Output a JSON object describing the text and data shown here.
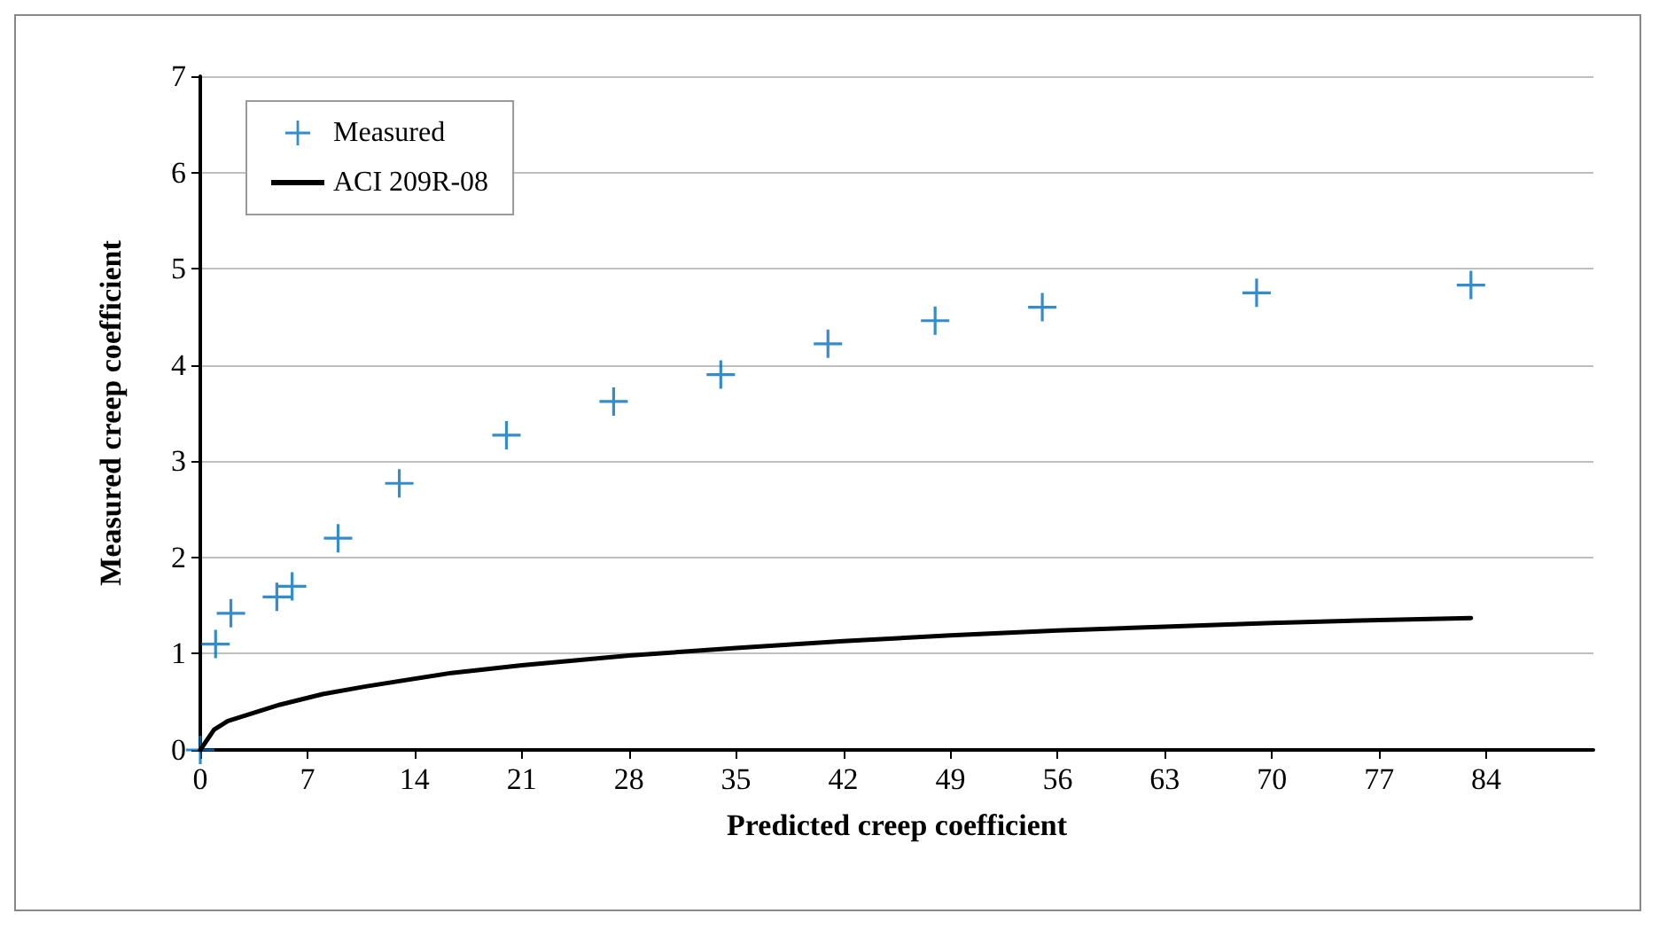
{
  "chart_data": {
    "type": "scatter",
    "xlabel": "Predicted creep coefficient",
    "ylabel": "Measured creep coefficient",
    "xlim": [
      0,
      91
    ],
    "xticks": [
      0,
      7,
      14,
      21,
      28,
      35,
      42,
      49,
      56,
      63,
      70,
      77,
      84
    ],
    "ylim": [
      0,
      7
    ],
    "yticks": [
      0,
      1,
      2,
      3,
      4,
      5,
      6,
      7
    ],
    "grid": "y",
    "legend": "top left",
    "series": [
      {
        "name": "Measured",
        "marker": "cross",
        "color": "#0070c0",
        "x": [
          0,
          1,
          2,
          5,
          6,
          9,
          13,
          20,
          27,
          34,
          41,
          48,
          55,
          69,
          83
        ],
        "values": [
          0,
          1.1,
          1.42,
          1.59,
          1.7,
          2.2,
          2.77,
          3.27,
          3.62,
          3.9,
          4.22,
          4.46,
          4.6,
          4.75,
          4.83
        ]
      },
      {
        "name": "ACI 209R-08",
        "type": "line",
        "marker": "none",
        "line_style": "solid",
        "color": "#000000",
        "x": [
          0,
          0.9,
          1.8,
          5.2,
          8,
          10.8,
          16.4,
          21,
          28,
          35,
          42,
          49,
          56,
          63,
          70,
          77,
          83
        ],
        "values": [
          0,
          0.21,
          0.3,
          0.47,
          0.58,
          0.66,
          0.8,
          0.88,
          0.98,
          1.06,
          1.13,
          1.19,
          1.24,
          1.28,
          1.32,
          1.35,
          1.37
        ]
      }
    ]
  }
}
